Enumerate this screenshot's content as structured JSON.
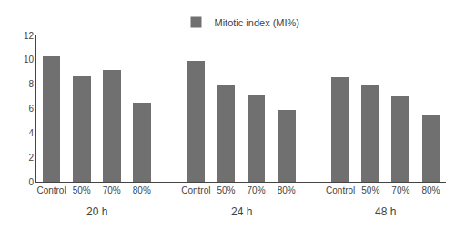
{
  "chart_data": {
    "type": "bar",
    "categories": [
      "Control",
      "50%",
      "70%",
      "80%",
      "Control",
      "50%",
      "70%",
      "80%",
      "Control",
      "50%",
      "70%",
      "80%"
    ],
    "series": [
      {
        "name": "Mitotic index (MI%)",
        "color": "#707070",
        "values": [
          10.25,
          8.65,
          9.2,
          6.5,
          9.9,
          8.0,
          7.1,
          5.9,
          8.6,
          7.9,
          7.0,
          5.5
        ]
      }
    ],
    "annotations": [
      "20 h",
      "24 h",
      "48 h"
    ],
    "ylim": [
      0,
      12
    ],
    "yticks": [
      0,
      2,
      4,
      6,
      8,
      10,
      12
    ],
    "grid": false,
    "legend": "top"
  }
}
